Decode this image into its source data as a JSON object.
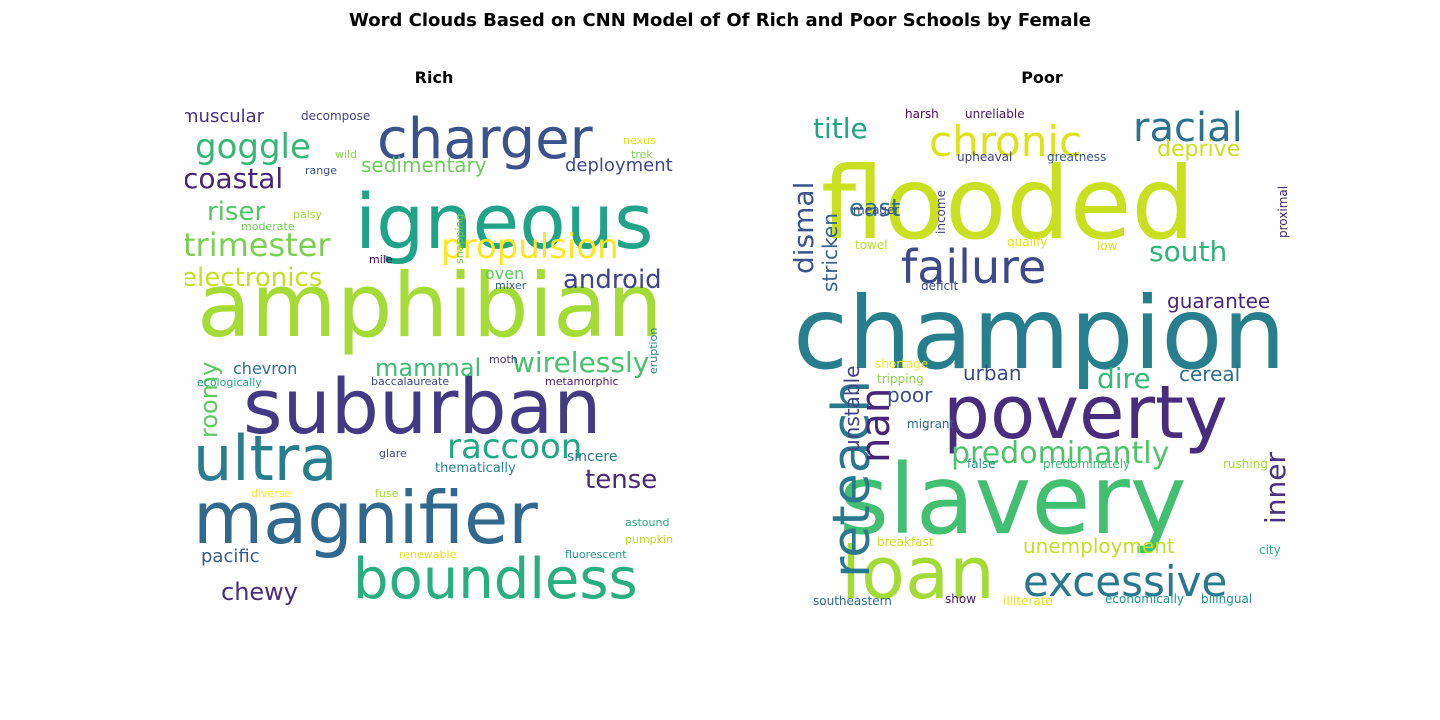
{
  "title": "Word Clouds Based on CNN Model of Of Rich and Poor Schools by Female",
  "chart_data": [
    {
      "type": "wordcloud",
      "title": "Rich",
      "words": [
        {
          "text": "amphibian",
          "weight": 1.0,
          "color": "#a5db36",
          "rotate": 0
        },
        {
          "text": "igneous",
          "weight": 0.92,
          "color": "#20a386",
          "rotate": 0
        },
        {
          "text": "suburban",
          "weight": 0.9,
          "color": "#443983",
          "rotate": 0
        },
        {
          "text": "magnifier",
          "weight": 0.88,
          "color": "#31688e",
          "rotate": 0
        },
        {
          "text": "ultra",
          "weight": 0.72,
          "color": "#287d8e",
          "rotate": 0
        },
        {
          "text": "charger",
          "weight": 0.7,
          "color": "#3b528b",
          "rotate": 0
        },
        {
          "text": "boundless",
          "weight": 0.66,
          "color": "#29af7f",
          "rotate": 0
        },
        {
          "text": "propulsion",
          "weight": 0.42,
          "color": "#fde725",
          "rotate": 0
        },
        {
          "text": "raccoon",
          "weight": 0.42,
          "color": "#22a785",
          "rotate": 0
        },
        {
          "text": "goggle",
          "weight": 0.4,
          "color": "#35b779",
          "rotate": 0
        },
        {
          "text": "trimester",
          "weight": 0.4,
          "color": "#7ad151",
          "rotate": 0
        },
        {
          "text": "wirelessly",
          "weight": 0.36,
          "color": "#4ac16d",
          "rotate": 0
        },
        {
          "text": "electronics",
          "weight": 0.34,
          "color": "#c2df23",
          "rotate": 0
        },
        {
          "text": "android",
          "weight": 0.34,
          "color": "#414487",
          "rotate": 0
        },
        {
          "text": "coastal",
          "weight": 0.32,
          "color": "#482677",
          "rotate": 0
        },
        {
          "text": "tense",
          "weight": 0.32,
          "color": "#482878",
          "rotate": 0
        },
        {
          "text": "riser",
          "weight": 0.32,
          "color": "#52c569",
          "rotate": 0
        },
        {
          "text": "mammal",
          "weight": 0.3,
          "color": "#3dbc74",
          "rotate": 0
        },
        {
          "text": "chewy",
          "weight": 0.3,
          "color": "#472d7b",
          "rotate": 0
        },
        {
          "text": "roomy",
          "weight": 0.3,
          "color": "#5ec962",
          "rotate": -90
        },
        {
          "text": "sedimentary",
          "weight": 0.24,
          "color": "#6ccd5a",
          "rotate": 0
        },
        {
          "text": "muscular",
          "weight": 0.24,
          "color": "#46327e",
          "rotate": 0
        },
        {
          "text": "deployment",
          "weight": 0.22,
          "color": "#3e4989",
          "rotate": 0
        },
        {
          "text": "chevron",
          "weight": 0.22,
          "color": "#2d708e",
          "rotate": 0
        },
        {
          "text": "pacific",
          "weight": 0.22,
          "color": "#38598c",
          "rotate": 0
        },
        {
          "text": "oven",
          "weight": 0.2,
          "color": "#5ec962",
          "rotate": 0
        },
        {
          "text": "sincere",
          "weight": 0.18,
          "color": "#2a788e",
          "rotate": 0
        },
        {
          "text": "thematically",
          "weight": 0.16,
          "color": "#25858e",
          "rotate": 0
        },
        {
          "text": "decompose",
          "weight": 0.14,
          "color": "#414487",
          "rotate": 0
        },
        {
          "text": "nexus",
          "weight": 0.14,
          "color": "#dde318",
          "rotate": 0
        },
        {
          "text": "trek",
          "weight": 0.14,
          "color": "#7fd34e",
          "rotate": 0
        },
        {
          "text": "range",
          "weight": 0.14,
          "color": "#3b528b",
          "rotate": 0
        },
        {
          "text": "wild",
          "weight": 0.14,
          "color": "#86d549",
          "rotate": 0
        },
        {
          "text": "palsy",
          "weight": 0.14,
          "color": "#a0da39",
          "rotate": 0
        },
        {
          "text": "moderate",
          "weight": 0.14,
          "color": "#6ece58",
          "rotate": 0
        },
        {
          "text": "mile",
          "weight": 0.14,
          "color": "#440154",
          "rotate": 0
        },
        {
          "text": "snapping",
          "weight": 0.14,
          "color": "#6ece58",
          "rotate": -90
        },
        {
          "text": "mixer",
          "weight": 0.14,
          "color": "#35608d",
          "rotate": 0
        },
        {
          "text": "moth",
          "weight": 0.14,
          "color": "#46337f",
          "rotate": 0
        },
        {
          "text": "ecologically",
          "weight": 0.14,
          "color": "#20a486",
          "rotate": 0
        },
        {
          "text": "baccalaureate",
          "weight": 0.14,
          "color": "#404688",
          "rotate": 0
        },
        {
          "text": "metamorphic",
          "weight": 0.14,
          "color": "#4a1d6b",
          "rotate": 0
        },
        {
          "text": "eruption",
          "weight": 0.14,
          "color": "#26818e",
          "rotate": -90
        },
        {
          "text": "glare",
          "weight": 0.14,
          "color": "#3f4889",
          "rotate": 0
        },
        {
          "text": "diverse",
          "weight": 0.14,
          "color": "#fde725",
          "rotate": 0
        },
        {
          "text": "fuse",
          "weight": 0.14,
          "color": "#a5db36",
          "rotate": 0
        },
        {
          "text": "astound",
          "weight": 0.14,
          "color": "#28ae80",
          "rotate": 0
        },
        {
          "text": "pumpkin",
          "weight": 0.14,
          "color": "#bddf26",
          "rotate": 0
        },
        {
          "text": "renewable",
          "weight": 0.14,
          "color": "#e5e419",
          "rotate": 0
        },
        {
          "text": "fluorescent",
          "weight": 0.14,
          "color": "#1f9a8a",
          "rotate": 0
        }
      ]
    },
    {
      "type": "wordcloud",
      "title": "Poor",
      "words": [
        {
          "text": "flooded",
          "weight": 1.0,
          "color": "#c8e020",
          "rotate": 0
        },
        {
          "text": "champion",
          "weight": 0.98,
          "color": "#277f8e",
          "rotate": 0
        },
        {
          "text": "slavery",
          "weight": 0.92,
          "color": "#43bf71",
          "rotate": 0
        },
        {
          "text": "poverty",
          "weight": 0.82,
          "color": "#472d7b",
          "rotate": 0
        },
        {
          "text": "loan",
          "weight": 0.7,
          "color": "#a5db36",
          "rotate": 0
        },
        {
          "text": "reteach",
          "weight": 0.58,
          "color": "#2a788e",
          "rotate": -90
        },
        {
          "text": "failure",
          "weight": 0.52,
          "color": "#3e4989",
          "rotate": 0
        },
        {
          "text": "excessive",
          "weight": 0.46,
          "color": "#2a788e",
          "rotate": 0
        },
        {
          "text": "chronic",
          "weight": 0.44,
          "color": "#dde318",
          "rotate": 0
        },
        {
          "text": "racial",
          "weight": 0.42,
          "color": "#2c728e",
          "rotate": 0
        },
        {
          "text": "nan",
          "weight": 0.42,
          "color": "#482576",
          "rotate": -90
        },
        {
          "text": "predominantly",
          "weight": 0.36,
          "color": "#4ec36b",
          "rotate": 0
        },
        {
          "text": "dire",
          "weight": 0.34,
          "color": "#38b977",
          "rotate": 0
        },
        {
          "text": "south",
          "weight": 0.32,
          "color": "#2fb47c",
          "rotate": 0
        },
        {
          "text": "dismal",
          "weight": 0.32,
          "color": "#3b528b",
          "rotate": -90
        },
        {
          "text": "title",
          "weight": 0.32,
          "color": "#20a386",
          "rotate": 0
        },
        {
          "text": "inner",
          "weight": 0.3,
          "color": "#46327e",
          "rotate": -90
        },
        {
          "text": "east",
          "weight": 0.26,
          "color": "#2c728e",
          "rotate": 0
        },
        {
          "text": "deprive",
          "weight": 0.24,
          "color": "#cde11d",
          "rotate": 0
        },
        {
          "text": "unemployment",
          "weight": 0.24,
          "color": "#c0df25",
          "rotate": 0
        },
        {
          "text": "guarantee",
          "weight": 0.24,
          "color": "#482878",
          "rotate": 0
        },
        {
          "text": "cereal",
          "weight": 0.24,
          "color": "#2e6f8e",
          "rotate": 0
        },
        {
          "text": "stricken",
          "weight": 0.24,
          "color": "#34618d",
          "rotate": -90
        },
        {
          "text": "urban",
          "weight": 0.22,
          "color": "#3e4989",
          "rotate": 0
        },
        {
          "text": "poor",
          "weight": 0.22,
          "color": "#3d4d8a",
          "rotate": 0
        },
        {
          "text": "unstable",
          "weight": 0.22,
          "color": "#424186",
          "rotate": -90
        },
        {
          "text": "harsh",
          "weight": 0.14,
          "color": "#450559",
          "rotate": 0
        },
        {
          "text": "unreliable",
          "weight": 0.14,
          "color": "#481769",
          "rotate": 0
        },
        {
          "text": "upheaval",
          "weight": 0.14,
          "color": "#424086",
          "rotate": 0
        },
        {
          "text": "greatness",
          "weight": 0.14,
          "color": "#3a548c",
          "rotate": 0
        },
        {
          "text": "meager",
          "weight": 0.14,
          "color": "#3f4788",
          "rotate": 0
        },
        {
          "text": "income",
          "weight": 0.14,
          "color": "#414487",
          "rotate": -90
        },
        {
          "text": "proximal",
          "weight": 0.14,
          "color": "#482173",
          "rotate": -90
        },
        {
          "text": "towel",
          "weight": 0.14,
          "color": "#b5de2b",
          "rotate": 0
        },
        {
          "text": "qualify",
          "weight": 0.14,
          "color": "#e5e419",
          "rotate": 0
        },
        {
          "text": "low",
          "weight": 0.14,
          "color": "#d8e219",
          "rotate": 0
        },
        {
          "text": "deficit",
          "weight": 0.14,
          "color": "#3e4989",
          "rotate": 0
        },
        {
          "text": "shortage",
          "weight": 0.14,
          "color": "#fde725",
          "rotate": 0
        },
        {
          "text": "tripping",
          "weight": 0.14,
          "color": "#8bd646",
          "rotate": 0
        },
        {
          "text": "migrant",
          "weight": 0.14,
          "color": "#31688e",
          "rotate": 0
        },
        {
          "text": "false",
          "weight": 0.14,
          "color": "#20928c",
          "rotate": 0
        },
        {
          "text": "predominately",
          "weight": 0.14,
          "color": "#3dbc74",
          "rotate": 0
        },
        {
          "text": "rushing",
          "weight": 0.14,
          "color": "#a0da39",
          "rotate": 0
        },
        {
          "text": "breakfast",
          "weight": 0.14,
          "color": "#cae11f",
          "rotate": 0
        },
        {
          "text": "city",
          "weight": 0.14,
          "color": "#25ac82",
          "rotate": 0
        },
        {
          "text": "southeastern",
          "weight": 0.14,
          "color": "#30698e",
          "rotate": 0
        },
        {
          "text": "show",
          "weight": 0.14,
          "color": "#471365",
          "rotate": 0
        },
        {
          "text": "illiterate",
          "weight": 0.14,
          "color": "#e5e419",
          "rotate": 0
        },
        {
          "text": "economically",
          "weight": 0.14,
          "color": "#1f988b",
          "rotate": 0
        },
        {
          "text": "bilingual",
          "weight": 0.14,
          "color": "#21918c",
          "rotate": 0
        }
      ]
    }
  ]
}
